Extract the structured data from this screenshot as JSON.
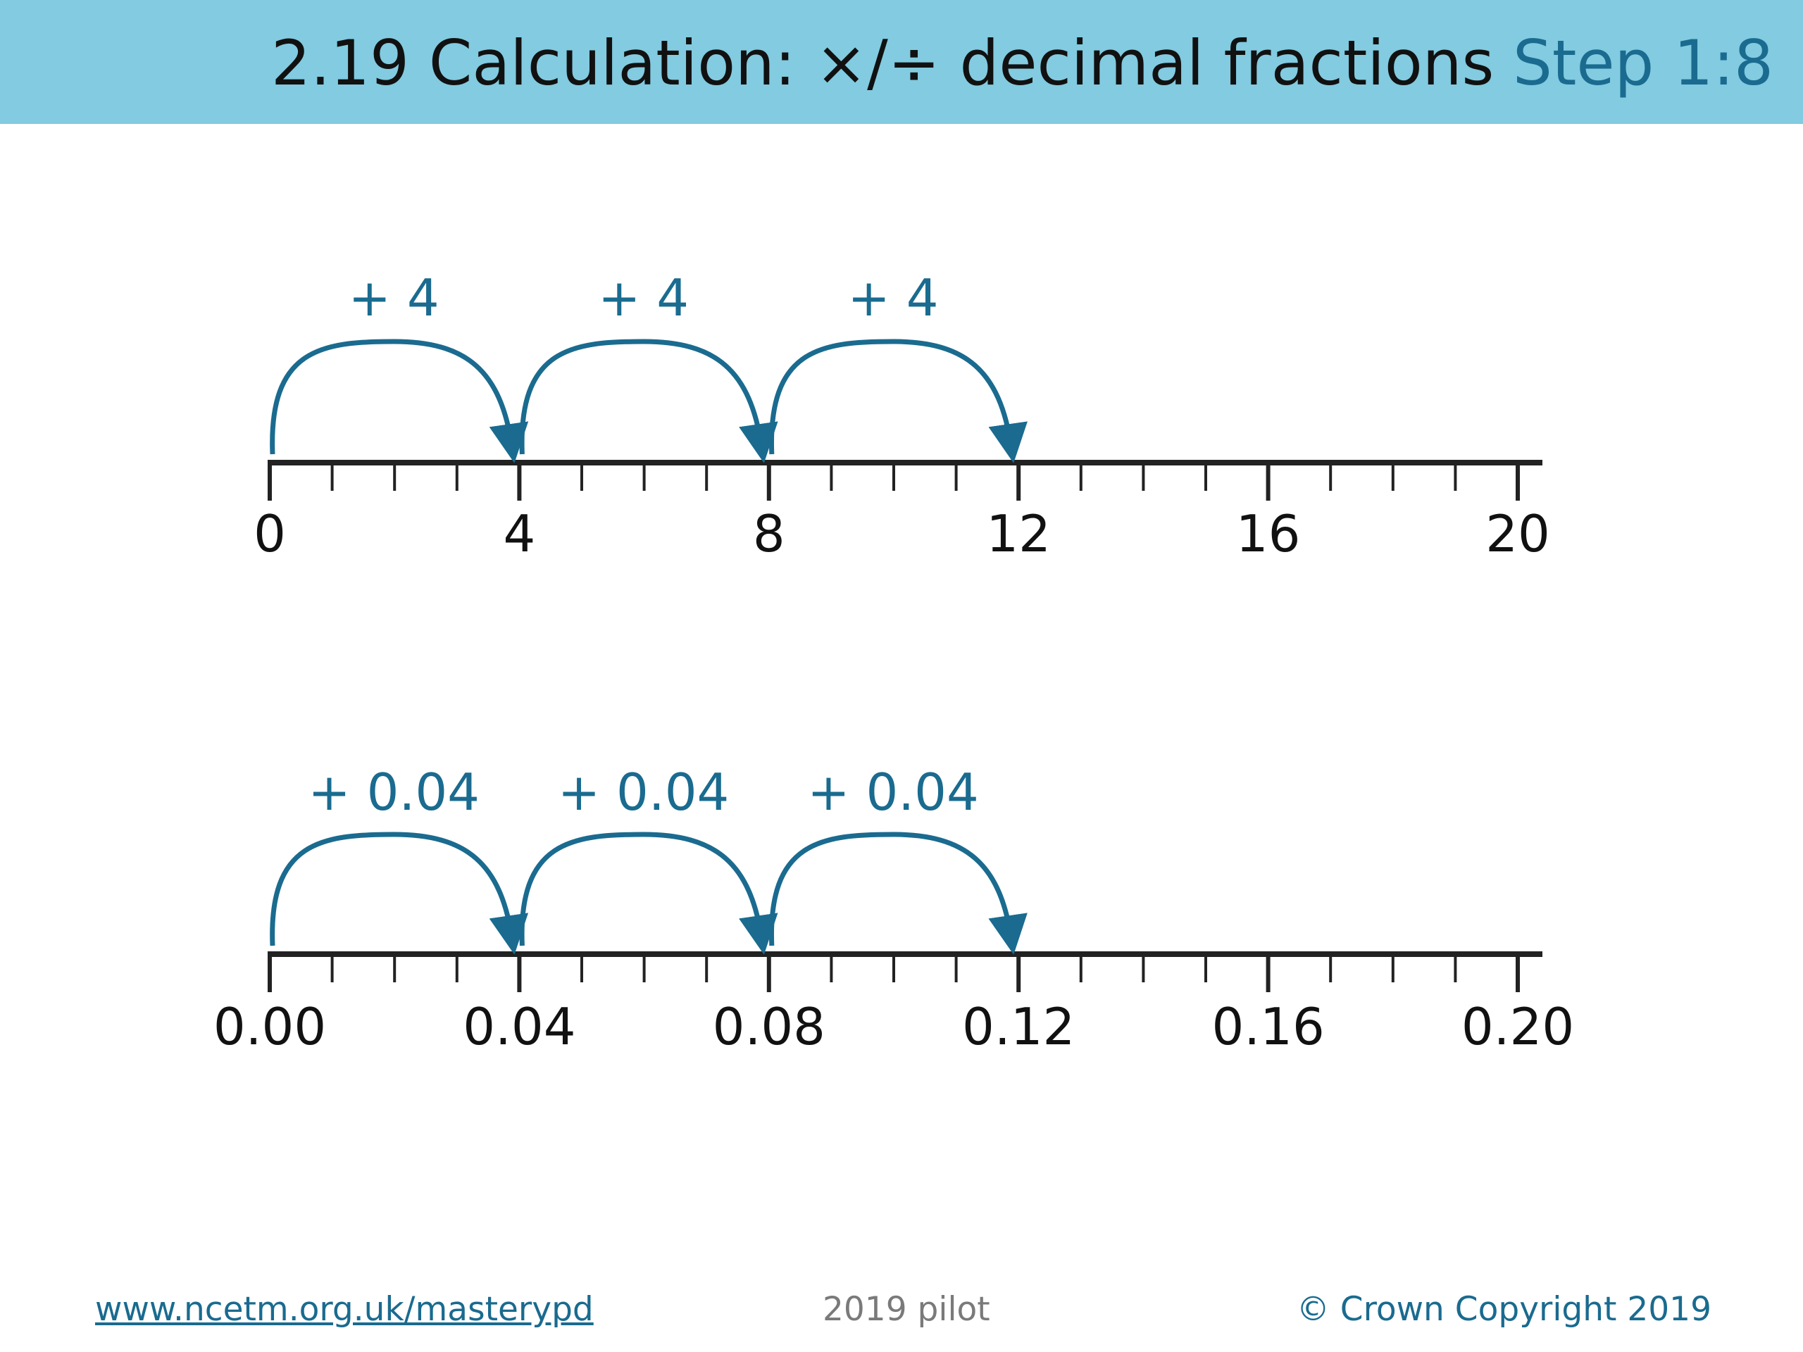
{
  "header": {
    "title": "2.19 Calculation: ×/÷ decimal fractions",
    "step": "Step 1:8"
  },
  "number_lines": [
    {
      "labels": [
        "0",
        "4",
        "8",
        "12",
        "16",
        "20"
      ],
      "jumps": [
        "+ 4",
        "+ 4",
        "+ 4"
      ]
    },
    {
      "labels": [
        "0.00",
        "0.04",
        "0.08",
        "0.12",
        "0.16",
        "0.20"
      ],
      "jumps": [
        "+ 0.04",
        "+ 0.04",
        "+ 0.04"
      ]
    }
  ],
  "footer": {
    "link": "www.ncetm.org.uk/masterypd",
    "center": "2019 pilot",
    "copyright": "© Crown Copyright 2019"
  },
  "colors": {
    "header_bg": "#82cbe0",
    "accent": "#1a6b8f",
    "line": "#222222"
  }
}
